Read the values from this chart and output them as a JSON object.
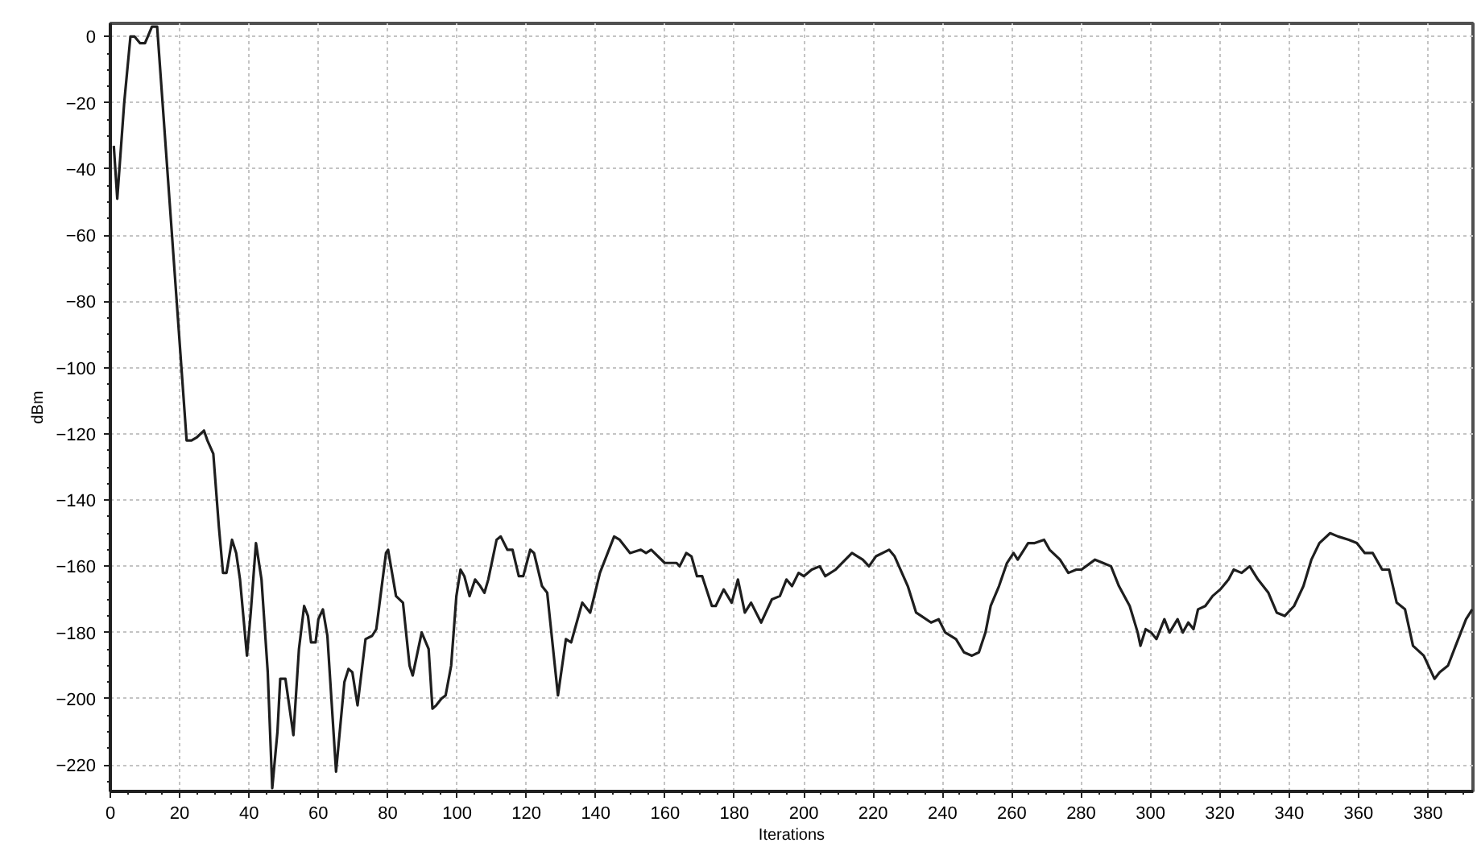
{
  "chart_data": {
    "type": "line",
    "xlabel": "Iterations",
    "ylabel": "dBm",
    "xlim": [
      0,
      393
    ],
    "ylim": [
      -228,
      4
    ],
    "xticks": [
      0,
      20,
      40,
      60,
      80,
      100,
      120,
      140,
      160,
      180,
      200,
      220,
      240,
      260,
      280,
      300,
      320,
      340,
      360,
      380
    ],
    "yticks": [
      0,
      -20,
      -40,
      -60,
      -80,
      -100,
      -120,
      -140,
      -160,
      -180,
      -200,
      -220
    ],
    "grid": true,
    "line_style": "solid",
    "x": [
      1,
      2,
      4,
      5.8,
      7,
      8.6,
      10,
      12,
      13.5,
      22,
      23.4,
      25,
      27,
      28,
      29.7,
      31.3,
      32.5,
      33.5,
      35.1,
      36.3,
      37.4,
      39.4,
      40.5,
      42,
      43.6,
      45.4,
      46.7,
      48.2,
      49,
      50.5,
      52.8,
      54.4,
      55.9,
      57,
      57.9,
      59.2,
      60,
      61.3,
      62.6,
      65.1,
      67.5,
      68.7,
      69.8,
      71.3,
      73.6,
      75.5,
      76.7,
      79.5,
      80.1,
      82.4,
      84.4,
      86.3,
      87.2,
      88.4,
      89.8,
      91.8,
      92.9,
      94,
      95.5,
      96.7,
      98.3,
      99.8,
      101,
      102.1,
      103.6,
      105.2,
      106.7,
      107.9,
      109,
      111.4,
      112.6,
      114.5,
      116,
      117.8,
      119.1,
      121.1,
      122.2,
      124.5,
      126,
      129.1,
      131.4,
      132.9,
      136.1,
      138.4,
      141.2,
      145.3,
      146.9,
      149.9,
      153,
      154.5,
      156,
      159.9,
      163.3,
      164.2,
      166.1,
      167.6,
      169.2,
      170.7,
      173.5,
      174.6,
      176.9,
      179.2,
      181,
      183,
      184.8,
      187.7,
      190.8,
      193.1,
      195,
      196.6,
      198.5,
      200,
      202.3,
      204.6,
      206.2,
      209.2,
      212,
      213.9,
      217,
      218.8,
      220.8,
      224.6,
      226.2,
      230,
      232.4,
      233.9,
      236.7,
      238.9,
      240.8,
      243.9,
      246.2,
      248.5,
      250.5,
      252.4,
      253.9,
      256.3,
      258.6,
      260.5,
      261.7,
      264.7,
      266.6,
      269.3,
      270.9,
      273.9,
      276.3,
      278.6,
      280.1,
      284,
      286.3,
      288.6,
      290.9,
      294,
      296.3,
      297.1,
      298.6,
      300.2,
      301.7,
      304,
      305.5,
      307.8,
      309.3,
      310.9,
      312.4,
      313.7,
      315.8,
      317.9,
      320.1,
      322.5,
      324,
      326.3,
      328.6,
      331,
      334,
      336.4,
      338.7,
      341.4,
      344.1,
      346.4,
      348.7,
      351.8,
      354.1,
      357.2,
      359.5,
      361.8,
      364.1,
      366.8,
      368.8,
      371,
      373.4,
      375.7,
      378.8,
      381.9,
      383.4,
      385.8,
      388,
      391,
      392.8
    ],
    "series": [
      {
        "color": "#1e1e1e",
        "values": [
          -33,
          -49,
          -20,
          0,
          0,
          -2,
          -2,
          3,
          3,
          -122,
          -122,
          -121,
          -119,
          -122,
          -126,
          -148,
          -162,
          -162,
          -152,
          -156,
          -164,
          -187,
          -174,
          -153,
          -164,
          -192,
          -227,
          -210,
          -194,
          -194,
          -211,
          -185,
          -172,
          -175,
          -183,
          -183,
          -176,
          -173,
          -181,
          -222,
          -195,
          -191,
          -192,
          -202,
          -182,
          -181,
          -179,
          -156,
          -155,
          -169,
          -171,
          -190,
          -193,
          -187,
          -180,
          -185,
          -203,
          -202,
          -200,
          -199,
          -190,
          -169,
          -161,
          -163,
          -169,
          -164,
          -166,
          -168,
          -164,
          -152,
          -151,
          -155,
          -155,
          -163,
          -163,
          -155,
          -156,
          -166,
          -168,
          -199,
          -182,
          -183,
          -171,
          -174,
          -162,
          -151,
          -152,
          -156,
          -155,
          -156,
          -155,
          -159,
          -159,
          -160,
          -156,
          -157,
          -163,
          -163,
          -172,
          -172,
          -167,
          -171,
          -164,
          -174,
          -171,
          -177,
          -170,
          -169,
          -164,
          -166,
          -162,
          -163,
          -161,
          -160,
          -163,
          -161,
          -158,
          -156,
          -158,
          -160,
          -157,
          -155,
          -157,
          -166,
          -174,
          -175,
          -177,
          -176,
          -180,
          -182,
          -186,
          -187,
          -186,
          -180,
          -172,
          -166,
          -159,
          -156,
          -158,
          -153,
          -153,
          -152,
          -155,
          -158,
          -162,
          -161,
          -161,
          -158,
          -159,
          -160,
          -166,
          -172,
          -180,
          -184,
          -179,
          -180,
          -182,
          -176,
          -180,
          -176,
          -180,
          -177,
          -179,
          -173,
          -172,
          -169,
          -167,
          -164,
          -161,
          -162,
          -160,
          -164,
          -168,
          -174,
          -175,
          -172,
          -166,
          -158,
          -153,
          -150,
          -151,
          -152,
          -153,
          -156,
          -156,
          -161,
          -161,
          -171,
          -173,
          -184,
          -187,
          -194,
          -192,
          -190,
          -184,
          -176,
          -173
        ]
      }
    ]
  }
}
